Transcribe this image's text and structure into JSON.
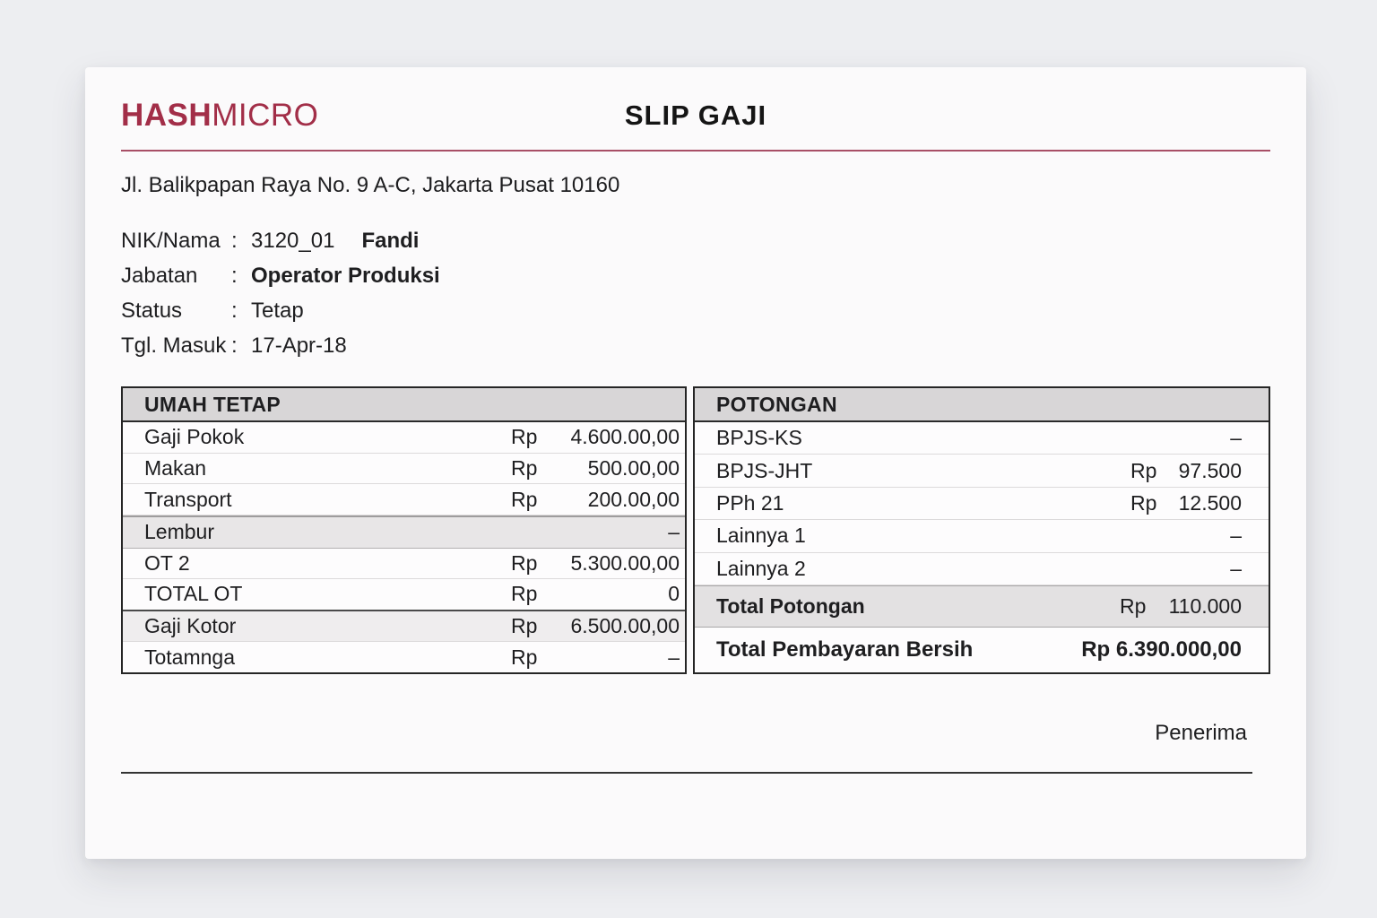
{
  "header": {
    "logo_bold": "HASH",
    "logo_light": "MICRO",
    "title": "SLIP GAJI",
    "address": "Jl. Balikpapan Raya No. 9 A-C, Jakarta Pusat 10160"
  },
  "info": {
    "colon": ":",
    "rows": [
      {
        "label": "NIK/Nama",
        "value": "3120_01",
        "value_bold": "Fandi"
      },
      {
        "label": "Jabatan",
        "value": "",
        "value_bold": "Operator Produksi"
      },
      {
        "label": "Status",
        "value": "Tetap",
        "value_bold": ""
      },
      {
        "label": "Tgl. Masuk",
        "value": "17-Apr-18",
        "value_bold": ""
      }
    ]
  },
  "earnings": {
    "header": "UMAH TETAP",
    "rows": [
      {
        "label": "Gaji Pokok",
        "currency": "Rp",
        "value": "4.600.00,00"
      },
      {
        "label": "Makan",
        "currency": "Rp",
        "value": "500.00,00"
      },
      {
        "label": "Transport",
        "currency": "Rp",
        "value": "200.00,00"
      },
      {
        "label": "Lembur",
        "currency": "",
        "value": "–"
      },
      {
        "label": "OT 2",
        "currency": "Rp",
        "value": "5.300.00,00"
      },
      {
        "label": "TOTAL OT",
        "currency": "Rp",
        "value": "0"
      },
      {
        "label": "Gaji Kotor",
        "currency": "Rp",
        "value": "6.500.00,00"
      },
      {
        "label": "Totamnga",
        "currency": "Rp",
        "value": "–"
      }
    ]
  },
  "deductions": {
    "header": "POTONGAN",
    "rows": [
      {
        "label": "BPJS-KS",
        "currency": "",
        "value": "–"
      },
      {
        "label": "BPJS-JHT",
        "currency": "Rp",
        "value": "97.500"
      },
      {
        "label": "PPh 21",
        "currency": "Rp",
        "value": "12.500"
      },
      {
        "label": "Lainnya 1",
        "currency": "",
        "value": "–"
      },
      {
        "label": "Lainnya 2",
        "currency": "",
        "value": "–"
      }
    ],
    "total": {
      "label": "Total Potongan",
      "currency": "Rp",
      "value": "110.000"
    },
    "net": {
      "label": "Total Pembayaran Bersih",
      "value": "Rp 6.390.000,00"
    }
  },
  "footer": {
    "signature_label": "Penerima"
  },
  "colors": {
    "brand": "#a22e48",
    "rule": "#a84f66",
    "thead-bg": "#d8d6d7",
    "total-bg": "#e3e1e2"
  }
}
